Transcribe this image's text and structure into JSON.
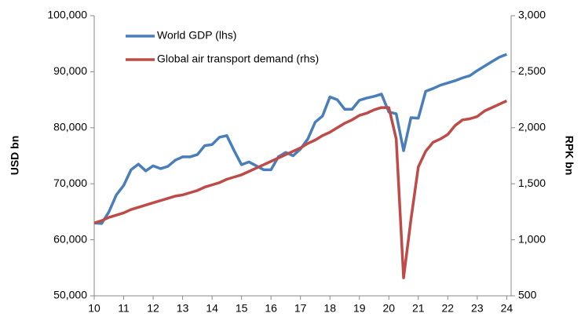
{
  "chart_data": {
    "type": "line",
    "x": [
      10,
      10.25,
      10.5,
      10.75,
      11,
      11.25,
      11.5,
      11.75,
      12,
      12.25,
      12.5,
      12.75,
      13,
      13.25,
      13.5,
      13.75,
      14,
      14.25,
      14.5,
      14.75,
      15,
      15.25,
      15.5,
      15.75,
      16,
      16.25,
      16.5,
      16.75,
      17,
      17.25,
      17.5,
      17.75,
      18,
      18.25,
      18.5,
      18.75,
      19,
      19.25,
      19.5,
      19.75,
      20,
      20.25,
      20.5,
      20.75,
      21,
      21.25,
      21.5,
      21.75,
      22,
      22.25,
      22.5,
      22.75,
      23,
      23.25,
      23.5,
      23.75,
      24
    ],
    "series": [
      {
        "name": "World GDP (lhs)",
        "color": "#4a7ebb",
        "axis": "y",
        "values": [
          63000,
          62900,
          65000,
          68000,
          69700,
          72500,
          73500,
          72300,
          73200,
          72700,
          73100,
          74200,
          74800,
          74800,
          75200,
          76800,
          77000,
          78300,
          78600,
          75900,
          73400,
          73900,
          73200,
          72500,
          72500,
          74800,
          75600,
          75000,
          76200,
          78000,
          81000,
          82100,
          85500,
          85000,
          83300,
          83300,
          84900,
          85300,
          85600,
          86000,
          82800,
          82500,
          75900,
          81800,
          81700,
          86500,
          87000,
          87600,
          88000,
          88400,
          88900,
          89300,
          90200,
          91000,
          91800,
          92600,
          93100
        ]
      },
      {
        "name": "Global air transport demand (rhs)",
        "color": "#be4b48",
        "axis": "y2",
        "values": [
          1150,
          1170,
          1200,
          1220,
          1240,
          1270,
          1290,
          1310,
          1330,
          1350,
          1370,
          1390,
          1400,
          1420,
          1440,
          1470,
          1490,
          1510,
          1540,
          1560,
          1580,
          1610,
          1640,
          1670,
          1700,
          1730,
          1760,
          1790,
          1820,
          1860,
          1890,
          1930,
          1960,
          2000,
          2040,
          2070,
          2110,
          2130,
          2160,
          2180,
          2180,
          1900,
          660,
          1180,
          1650,
          1790,
          1870,
          1900,
          1940,
          2020,
          2070,
          2080,
          2100,
          2150,
          2180,
          2210,
          2240
        ]
      }
    ],
    "xlim": [
      10,
      24.15
    ],
    "xticks": [
      10,
      11,
      12,
      13,
      14,
      15,
      16,
      17,
      18,
      19,
      20,
      21,
      22,
      23,
      24
    ],
    "ylim": [
      50000,
      100000
    ],
    "yticks": [
      {
        "value": 50000,
        "label": "50,000"
      },
      {
        "value": 60000,
        "label": "60,000"
      },
      {
        "value": 70000,
        "label": "70,000"
      },
      {
        "value": 80000,
        "label": "80,000"
      },
      {
        "value": 90000,
        "label": "90,000"
      },
      {
        "value": 100000,
        "label": "100,000"
      }
    ],
    "y2lim": [
      500,
      3000
    ],
    "y2ticks": [
      500,
      {
        "value": 1000,
        "label": "1,000"
      },
      {
        "value": 1500,
        "label": "1,500"
      },
      {
        "value": 2000,
        "label": "2,000"
      },
      {
        "value": 2500,
        "label": "2,500"
      },
      {
        "value": 3000,
        "label": "3,000"
      }
    ],
    "ylabel": "USD bn",
    "y2label": "RPK bn",
    "grid": false,
    "legend": "upper left"
  }
}
